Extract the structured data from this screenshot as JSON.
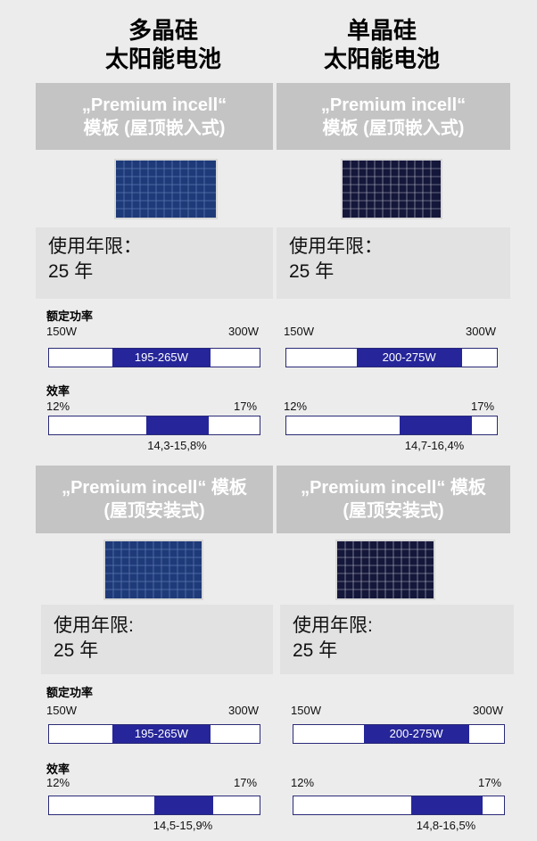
{
  "columns": {
    "left": {
      "title_line1": "多晶硅",
      "title_line2": "太阳能电池"
    },
    "right": {
      "title_line1": "单晶硅",
      "title_line2": "太阳能电池"
    }
  },
  "sections": [
    {
      "left": {
        "header_line1": "„Premium incell“",
        "header_line2": "模板 (屋顶嵌入式)",
        "life_line1": "使用年限：",
        "life_line2": "25 年",
        "power_label": "额定功率",
        "power_min": "150W",
        "power_max": "300W",
        "power_range_text": "195-265W",
        "power_range": [
          195,
          265
        ],
        "eff_label": "效率",
        "eff_min": "12%",
        "eff_max": "17%",
        "eff_range_text": "14,3-15,8%",
        "eff_range": [
          14.3,
          15.8
        ]
      },
      "right": {
        "header_line1": "„Premium incell“",
        "header_line2": "模板 (屋顶嵌入式)",
        "life_line1": "使用年限：",
        "life_line2": "25 年",
        "power_min": "150W",
        "power_max": "300W",
        "power_range_text": "200-275W",
        "power_range": [
          200,
          275
        ],
        "eff_min": "12%",
        "eff_max": "17%",
        "eff_range_text": "14,7-16,4%",
        "eff_range": [
          14.7,
          16.4
        ]
      }
    },
    {
      "left": {
        "header_line1": "„Premium incell“ 模板",
        "header_line2": "(屋顶安装式)",
        "life_line1": "使用年限:",
        "life_line2": "25 年",
        "power_label": "额定功率",
        "power_min": "150W",
        "power_max": "300W",
        "power_range_text": "195-265W",
        "power_range": [
          195,
          265
        ],
        "eff_label": "效率",
        "eff_min": "12%",
        "eff_max": "17%",
        "eff_range_text": "14,5-15,9%",
        "eff_range": [
          14.5,
          15.9
        ]
      },
      "right": {
        "header_line1": "„Premium incell“ 模板",
        "header_line2": "(屋顶安装式)",
        "life_line1": "使用年限:",
        "life_line2": "25 年",
        "power_min": "150W",
        "power_max": "300W",
        "power_range_text": "200-275W",
        "power_range": [
          200,
          275
        ],
        "eff_min": "12%",
        "eff_max": "17%",
        "eff_range_text": "14,8-16,5%",
        "eff_range": [
          14.8,
          16.5
        ]
      }
    }
  ],
  "scales": {
    "power": [
      150,
      300
    ],
    "efficiency": [
      12,
      17
    ]
  },
  "colors": {
    "bar_fill": "#26269a",
    "header_bg": "#c4c4c4",
    "life_bg": "#e2e2e2",
    "poly_panel": "#1f3a78",
    "mono_panel": "#15173a"
  }
}
